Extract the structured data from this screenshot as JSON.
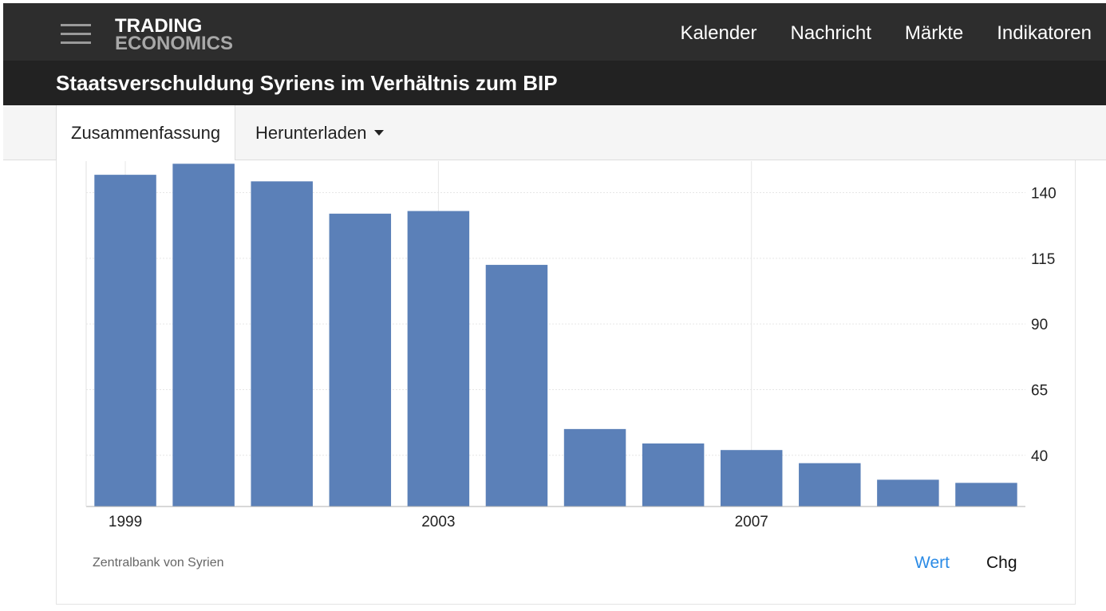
{
  "header": {
    "logo_line1": "TRADING",
    "logo_line2": "ECONOMICS",
    "nav": [
      "Kalender",
      "Nachricht",
      "Märkte",
      "Indikatoren"
    ]
  },
  "page_title": "Staatsverschuldung Syriens im Verhältnis zum BIP",
  "tabs": {
    "summary": "Zusammenfassung",
    "download": "Herunterladen"
  },
  "footer": {
    "source": "Zentralbank von Syrien",
    "toggle_value": "Wert",
    "toggle_change": "Chg"
  },
  "colors": {
    "bar": "#5b80b8",
    "accent_link": "#2b8be6",
    "header_bg": "#2d2d2d"
  },
  "chart_data": {
    "type": "bar",
    "categories": [
      "1999",
      "2000",
      "2001",
      "2002",
      "2003",
      "2004",
      "2005",
      "2006",
      "2007",
      "2008",
      "2009",
      "2010"
    ],
    "values": [
      146.8,
      151.0,
      144.3,
      132.0,
      133.0,
      112.5,
      50.0,
      44.5,
      42.0,
      37.0,
      30.7,
      29.5
    ],
    "x_tick_labels": [
      "1999",
      "2003",
      "2007"
    ],
    "y_ticks": [
      40,
      65,
      90,
      115,
      140
    ],
    "ylim": [
      20.5,
      152
    ],
    "y_axis_side": "right",
    "grid": true
  }
}
